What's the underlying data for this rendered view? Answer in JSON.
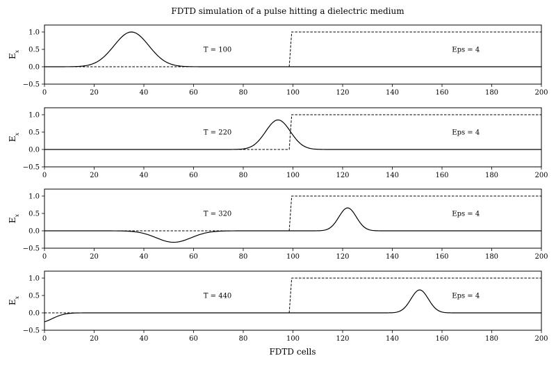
{
  "chart_data": {
    "type": "line",
    "title": "FDTD simulation of a pulse hitting a dielectric medium",
    "xlabel": "FDTD cells",
    "ylabel": "E",
    "ylabel_subscript": "x",
    "xlim": [
      0,
      200
    ],
    "ylim": [
      -0.5,
      1.2
    ],
    "xticks": [
      "0",
      "20",
      "40",
      "60",
      "80",
      "100",
      "120",
      "140",
      "160",
      "180",
      "200"
    ],
    "yticks": [
      "−0.5",
      "0.0",
      "0.5",
      "1.0"
    ],
    "grid": false,
    "dielectric": {
      "start_cell": 98.5,
      "end_cell": 99.5,
      "level_inside": 1.0,
      "level_outside": 0.0,
      "label": "Eps = 4"
    },
    "panels": [
      {
        "time_label": "T = 100",
        "field_components": [
          {
            "center": 35,
            "width": 7,
            "amplitude": 1.0
          }
        ]
      },
      {
        "time_label": "T = 220",
        "field_components": [
          {
            "center": 94,
            "width": 5,
            "amplitude": 0.85
          }
        ]
      },
      {
        "time_label": "T = 320",
        "field_components": [
          {
            "center": 52,
            "width": 7,
            "amplitude": -0.33
          },
          {
            "center": 122,
            "width": 3.5,
            "amplitude": 0.66
          }
        ]
      },
      {
        "time_label": "T = 440",
        "field_components": [
          {
            "center": -2,
            "width": 5,
            "amplitude": -0.28
          },
          {
            "center": 151,
            "width": 3.5,
            "amplitude": 0.66
          }
        ]
      }
    ]
  }
}
